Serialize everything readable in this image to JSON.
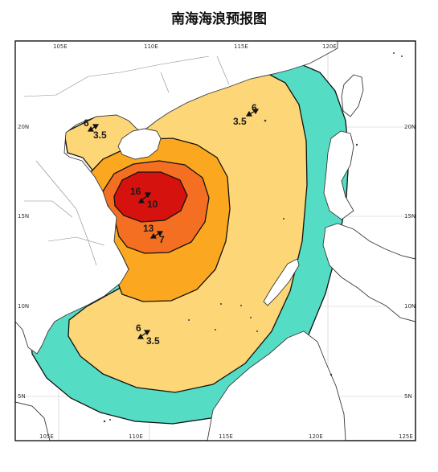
{
  "title": "南海海浪预报图",
  "axes": {
    "lon_top": [
      "105E",
      "110E",
      "115E",
      "120E"
    ],
    "lon_bottom": [
      "105E",
      "110E",
      "115E",
      "120E",
      "125E"
    ],
    "lat_left": [
      "20N",
      "15N",
      "10N",
      "5N"
    ],
    "lat_right": [
      "20N",
      "15N",
      "10N",
      "5N"
    ]
  },
  "colors": {
    "band_1_5_to_3_5": "#55dcc5",
    "band_3_5_to_6": "#fdd678",
    "band_6_to_9": "#fba820",
    "band_9_to_12": "#f46f22",
    "band_12_plus": "#d6120e",
    "frame": "#000000",
    "coast": "#3a3a3a"
  },
  "wave_labels": [
    {
      "id": "ne",
      "high": "6",
      "low": "3.5"
    },
    {
      "id": "gulf",
      "high": "6",
      "low": "3.5"
    },
    {
      "id": "core",
      "high": "16",
      "low": "10"
    },
    {
      "id": "south-core",
      "high": "13",
      "low": "7"
    },
    {
      "id": "south",
      "high": "6",
      "low": "3.5"
    }
  ]
}
